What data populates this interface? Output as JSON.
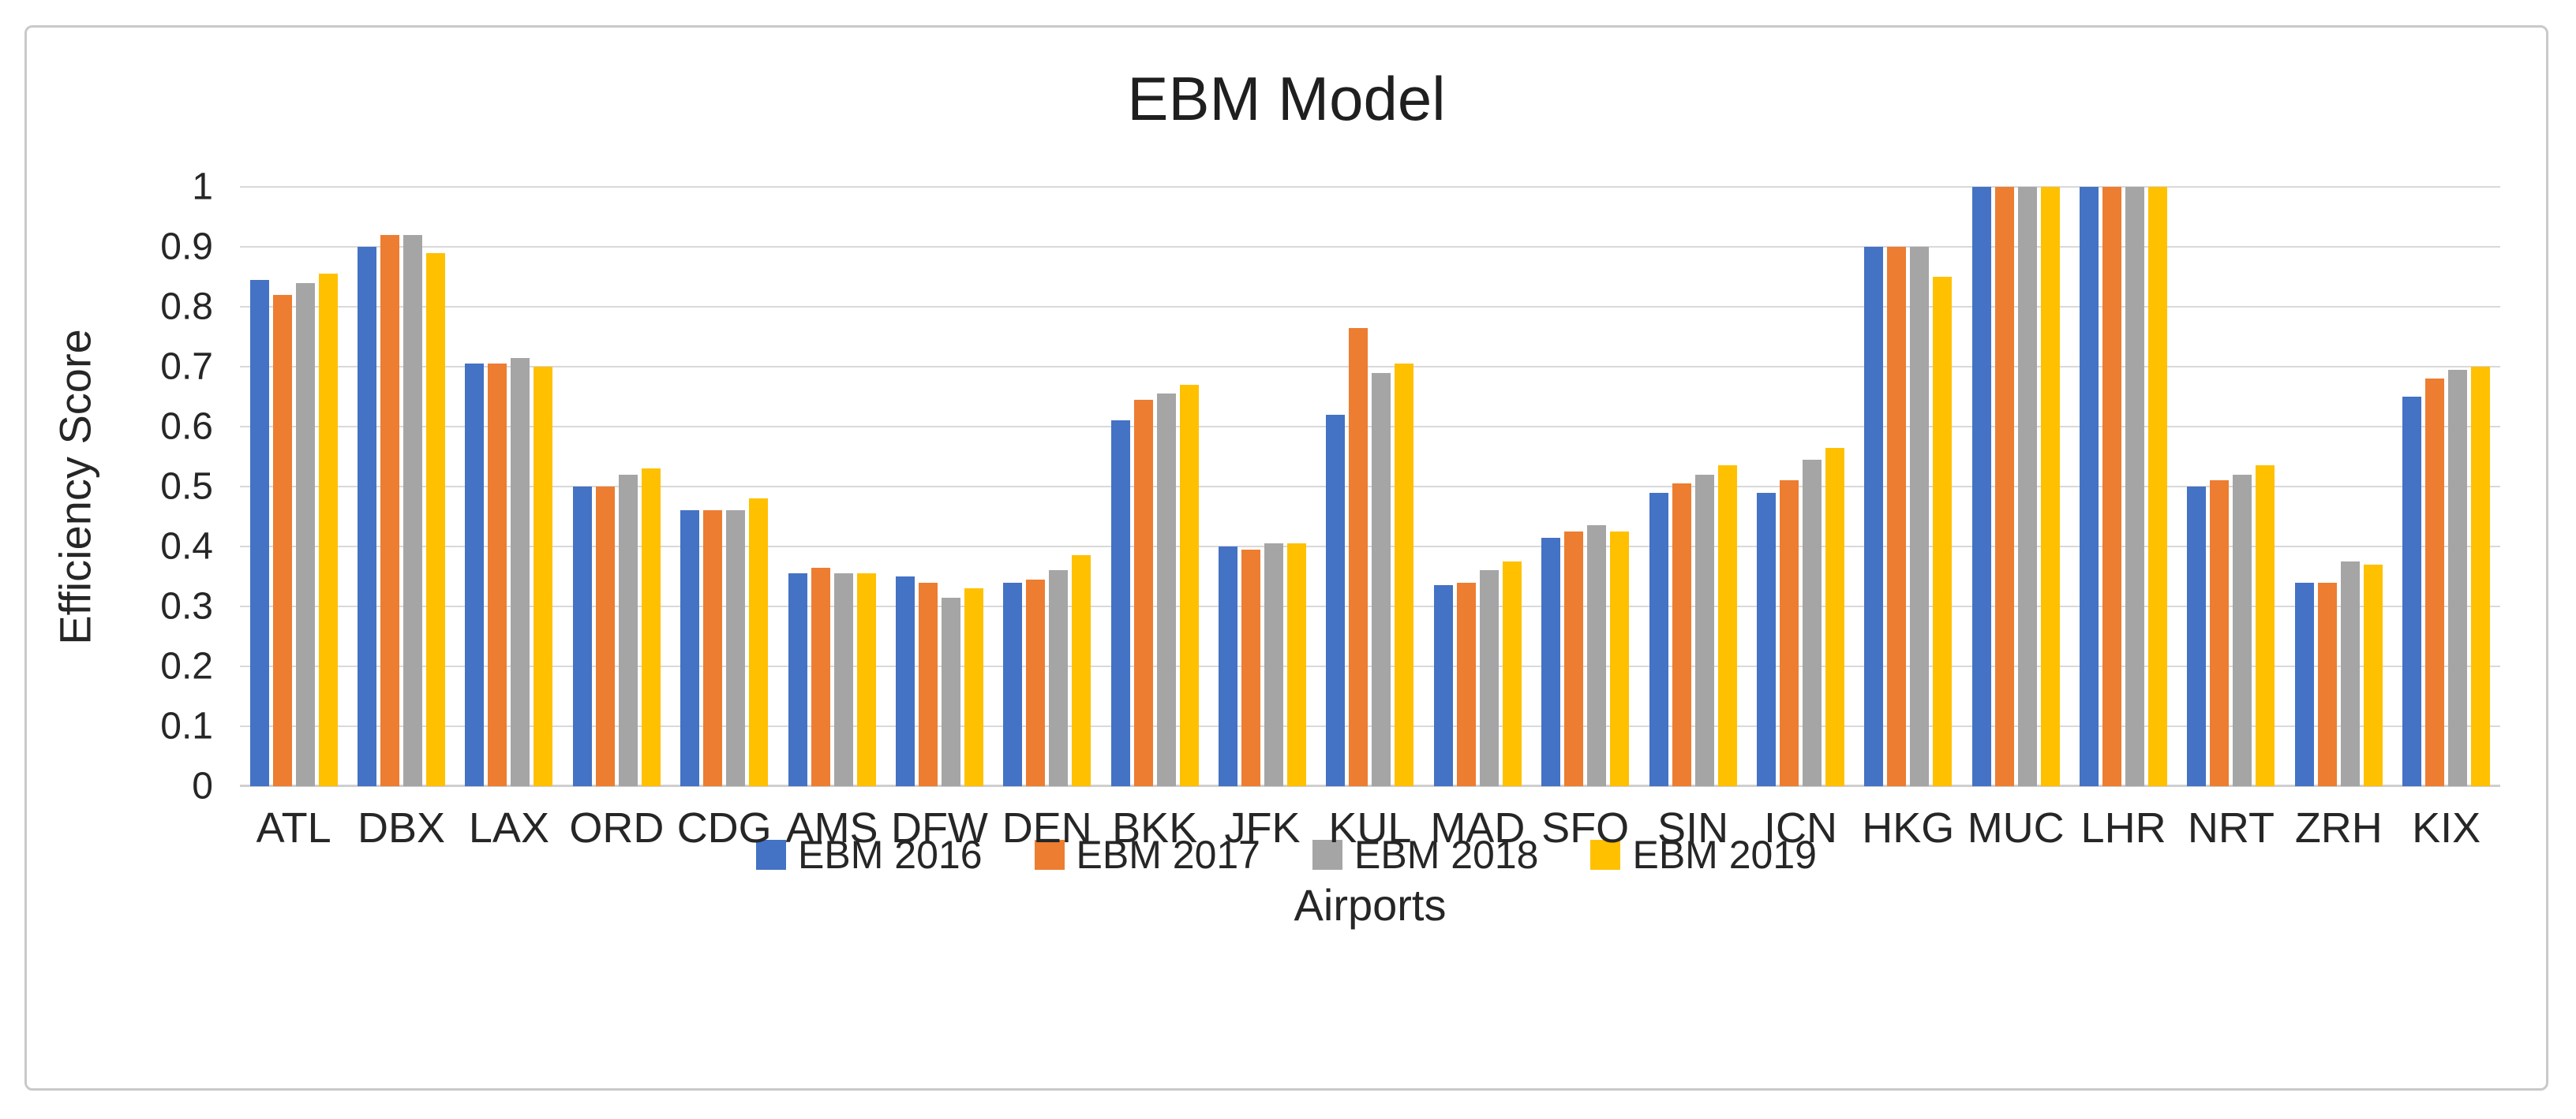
{
  "frame": {
    "background": "#FFFFFF",
    "border_color": "#C9C9C9"
  },
  "chart_data": {
    "type": "bar",
    "title": "EBM Model",
    "xlabel": "Airports",
    "ylabel": "Efficiency Score",
    "ylim": [
      0,
      1
    ],
    "yticks": [
      "0",
      "0.1",
      "0.2",
      "0.3",
      "0.4",
      "0.5",
      "0.6",
      "0.7",
      "0.8",
      "0.9",
      "1"
    ],
    "grid": "horizontal",
    "gridline_color": "#D9D9D9",
    "axis_line_color": "#CFCFCF",
    "legend_position": "bottom",
    "categories": [
      "ATL",
      "DBX",
      "LAX",
      "ORD",
      "CDG",
      "AMS",
      "DFW",
      "DEN",
      "BKK",
      "JFK",
      "KUL",
      "MAD",
      "SFO",
      "SIN",
      "ICN",
      "HKG",
      "MUC",
      "LHR",
      "NRT",
      "ZRH",
      "KIX"
    ],
    "series": [
      {
        "name": "EBM 2016",
        "color": "#4472C4",
        "values": [
          0.845,
          0.9,
          0.705,
          0.5,
          0.46,
          0.355,
          0.35,
          0.34,
          0.61,
          0.4,
          0.62,
          0.335,
          0.415,
          0.49,
          0.49,
          0.9,
          1.0,
          1.0,
          0.5,
          0.34,
          0.65
        ]
      },
      {
        "name": "EBM 2017",
        "color": "#ED7D31",
        "values": [
          0.82,
          0.92,
          0.705,
          0.5,
          0.46,
          0.365,
          0.34,
          0.345,
          0.645,
          0.395,
          0.765,
          0.34,
          0.425,
          0.505,
          0.51,
          0.9,
          1.0,
          1.0,
          0.51,
          0.34,
          0.68
        ]
      },
      {
        "name": "EBM 2018",
        "color": "#A5A5A5",
        "values": [
          0.84,
          0.92,
          0.715,
          0.52,
          0.46,
          0.355,
          0.315,
          0.36,
          0.655,
          0.405,
          0.69,
          0.36,
          0.435,
          0.52,
          0.545,
          0.9,
          1.0,
          1.0,
          0.52,
          0.375,
          0.695
        ]
      },
      {
        "name": "EBM 2019",
        "color": "#FFC000",
        "values": [
          0.855,
          0.89,
          0.7,
          0.53,
          0.48,
          0.355,
          0.33,
          0.385,
          0.67,
          0.405,
          0.705,
          0.375,
          0.425,
          0.535,
          0.565,
          0.85,
          1.0,
          1.0,
          0.535,
          0.37,
          0.7
        ]
      }
    ]
  }
}
